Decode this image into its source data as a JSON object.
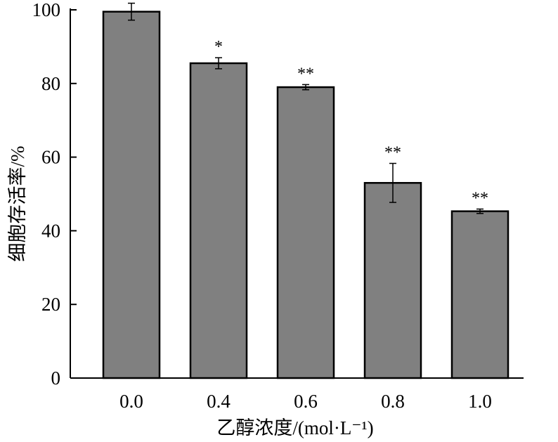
{
  "chart_data": {
    "type": "bar",
    "categories": [
      "0.0",
      "0.4",
      "0.6",
      "0.8",
      "1.0"
    ],
    "values": [
      99.5,
      85.5,
      79,
      53,
      45.3
    ],
    "errors": [
      2.3,
      1.5,
      0.7,
      5.3,
      0.6
    ],
    "significance": [
      "",
      "*",
      "**",
      "**",
      "**"
    ],
    "xlabel": "乙醇浓度/(mol·L⁻¹)",
    "ylabel": "细胞存活率/%",
    "ylim": [
      0,
      100
    ],
    "yticks": [
      "0",
      "20",
      "40",
      "60",
      "80",
      "100"
    ],
    "grid": false,
    "bar_color": "#808080",
    "edge_color": "#000000"
  }
}
